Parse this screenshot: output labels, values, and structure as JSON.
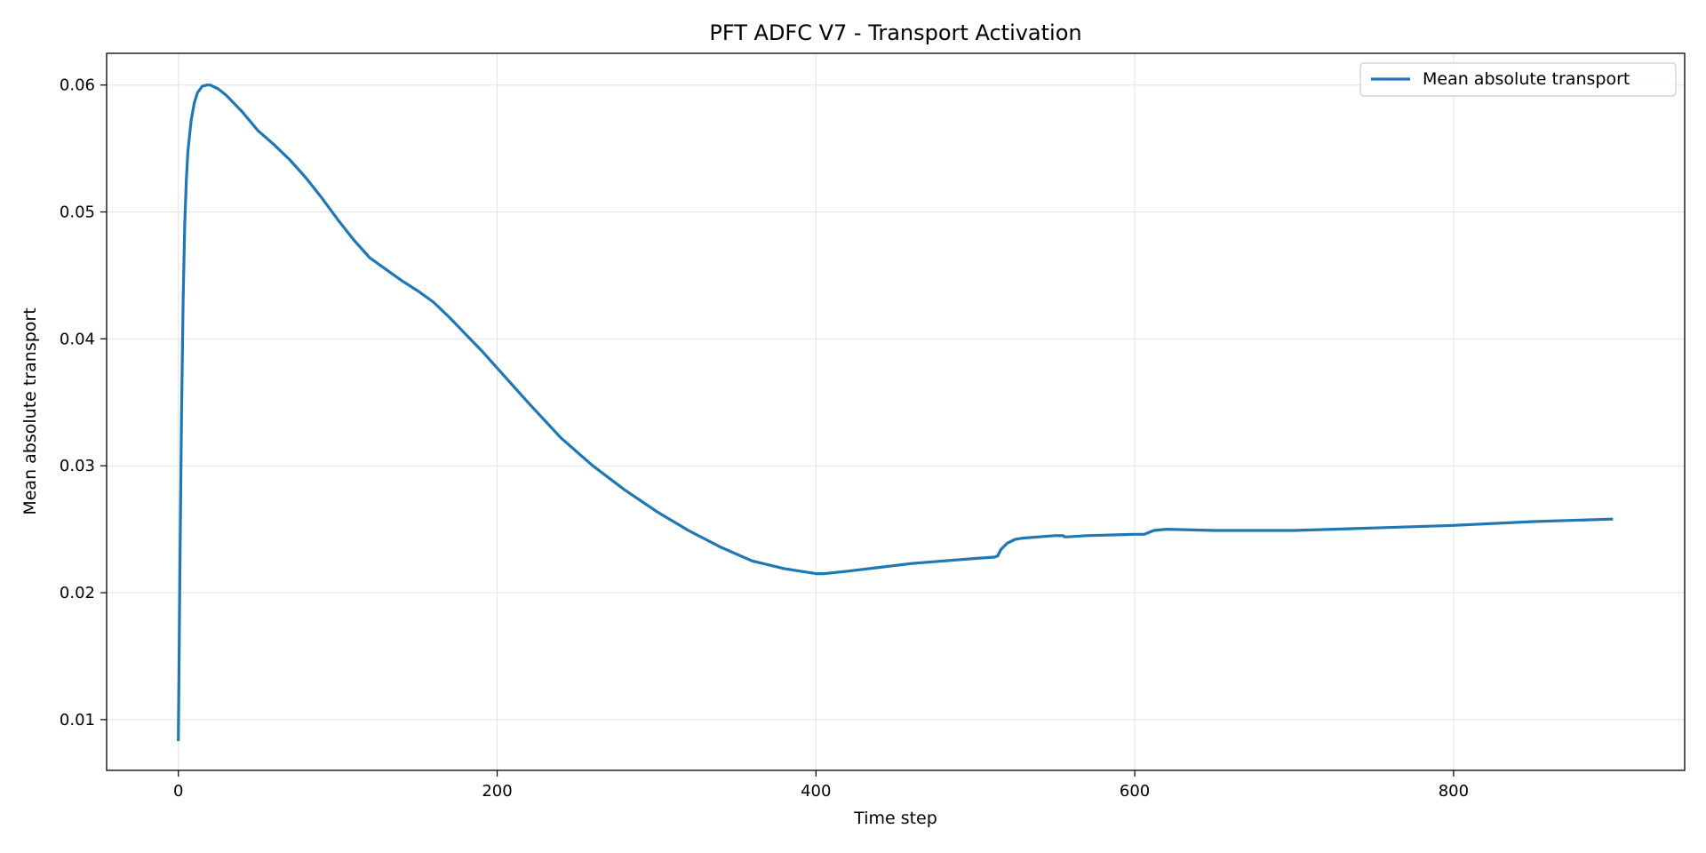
{
  "chart_data": {
    "type": "line",
    "title": "PFT ADFC V7 - Transport Activation",
    "xlabel": "Time step",
    "ylabel": "Mean absolute transport",
    "xlim": [
      -45,
      945
    ],
    "ylim": [
      0.006,
      0.0625
    ],
    "xticks": [
      0,
      200,
      400,
      600,
      800
    ],
    "xtick_labels": [
      "0",
      "200",
      "400",
      "600",
      "800"
    ],
    "yticks": [
      0.01,
      0.02,
      0.03,
      0.04,
      0.05,
      0.06
    ],
    "ytick_labels": [
      "0.01",
      "0.02",
      "0.03",
      "0.04",
      "0.05",
      "0.06"
    ],
    "grid": true,
    "legend_position": "top-right",
    "series": [
      {
        "name": "Mean absolute transport",
        "color": "#1f77b4",
        "x": [
          0,
          1,
          2,
          3,
          4,
          5,
          6,
          8,
          10,
          12,
          15,
          18,
          20,
          25,
          30,
          40,
          50,
          60,
          70,
          80,
          90,
          100,
          110,
          120,
          130,
          140,
          150,
          160,
          170,
          180,
          190,
          200,
          220,
          240,
          250,
          260,
          280,
          300,
          320,
          340,
          360,
          380,
          400,
          405,
          420,
          440,
          460,
          480,
          500,
          512,
          514,
          516,
          520,
          525,
          530,
          540,
          550,
          555,
          556,
          558,
          570,
          600,
          606,
          608,
          612,
          620,
          650,
          700,
          750,
          800,
          850,
          900
        ],
        "y": [
          0.0083,
          0.022,
          0.034,
          0.043,
          0.049,
          0.0525,
          0.0548,
          0.0572,
          0.0586,
          0.0594,
          0.0599,
          0.06,
          0.06,
          0.0597,
          0.0592,
          0.0579,
          0.0564,
          0.0553,
          0.0541,
          0.0527,
          0.0511,
          0.0494,
          0.0478,
          0.0464,
          0.0455,
          0.0446,
          0.0438,
          0.0429,
          0.0417,
          0.0404,
          0.0391,
          0.0377,
          0.0349,
          0.0322,
          0.0311,
          0.03,
          0.0281,
          0.0264,
          0.0249,
          0.0236,
          0.0225,
          0.0219,
          0.0215,
          0.0215,
          0.0217,
          0.022,
          0.0223,
          0.0225,
          0.0227,
          0.0228,
          0.0229,
          0.0234,
          0.0239,
          0.0242,
          0.0243,
          0.0244,
          0.0245,
          0.0245,
          0.0244,
          0.0244,
          0.0245,
          0.0246,
          0.0246,
          0.0247,
          0.0249,
          0.025,
          0.0249,
          0.0249,
          0.0251,
          0.0253,
          0.0256,
          0.0258
        ]
      }
    ]
  }
}
